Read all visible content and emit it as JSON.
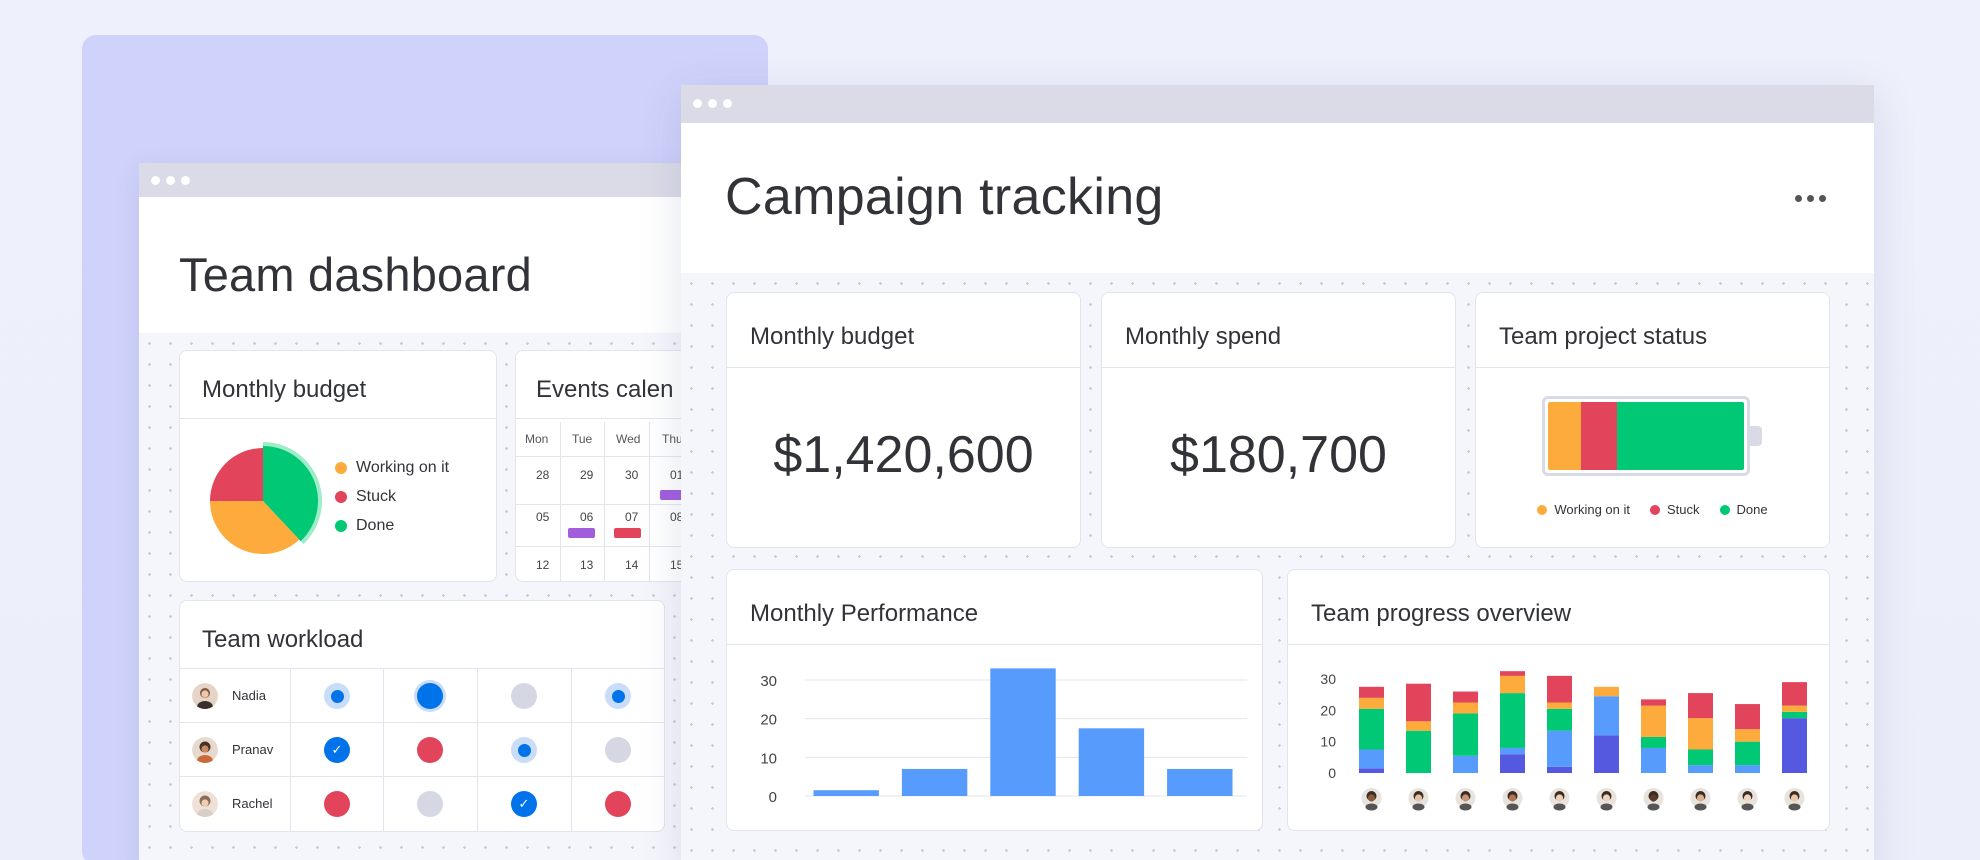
{
  "colors": {
    "working": "#fdab3d",
    "stuck": "#e2445c",
    "done": "#00c875",
    "bar_blue": "#579bfc",
    "indigo": "#5559df",
    "primary_blue": "#0073ea",
    "purple": "#a25ddc"
  },
  "back_window": {
    "title": "Team dashboard",
    "monthly_budget": {
      "title": "Monthly budget",
      "legend": [
        {
          "label": "Working on it",
          "color": "#fdab3d"
        },
        {
          "label": "Stuck",
          "color": "#e2445c"
        },
        {
          "label": "Done",
          "color": "#00c875"
        }
      ],
      "pie": [
        {
          "status": "Working on it",
          "value": 37
        },
        {
          "status": "Stuck",
          "value": 25
        },
        {
          "status": "Done",
          "value": 38
        }
      ]
    },
    "events_calendar": {
      "title": "Events calen",
      "days": [
        "Mon",
        "Tue",
        "Wed",
        "Thu"
      ],
      "weeks": [
        [
          "28",
          "29",
          "30",
          "01"
        ],
        [
          "05",
          "06",
          "07",
          "08"
        ],
        [
          "12",
          "13",
          "14",
          "15"
        ]
      ]
    },
    "team_workload": {
      "title": "Team workload",
      "rows": [
        {
          "name": "Nadia",
          "statuses": [
            "ring",
            "filled",
            "grey",
            "ring"
          ]
        },
        {
          "name": "Pranav",
          "statuses": [
            "check",
            "red",
            "ring",
            "grey"
          ]
        },
        {
          "name": "Rachel",
          "statuses": [
            "red",
            "grey",
            "check",
            "red"
          ]
        }
      ]
    }
  },
  "front_window": {
    "title": "Campaign tracking",
    "more_icon": "more-horizontal-icon",
    "monthly_budget": {
      "title": "Monthly budget",
      "value": "$1,420,600"
    },
    "monthly_spend": {
      "title": "Monthly spend",
      "value": "$180,700"
    },
    "team_project_status": {
      "title": "Team project status",
      "legend": [
        {
          "label": "Working on it",
          "color": "#fdab3d"
        },
        {
          "label": "Stuck",
          "color": "#e2445c"
        },
        {
          "label": "Done",
          "color": "#00c875"
        }
      ],
      "battery": [
        {
          "status": "Working on it",
          "value": 17
        },
        {
          "status": "Stuck",
          "value": 18
        },
        {
          "status": "Done",
          "value": 65
        }
      ]
    },
    "monthly_performance": {
      "title": "Monthly Performance"
    },
    "team_progress": {
      "title": "Team progress overview"
    }
  },
  "chart_data": [
    {
      "type": "bar",
      "title": "Monthly Performance",
      "ylim": [
        0,
        30
      ],
      "yticks": [
        "30",
        "20",
        "10",
        "0"
      ],
      "values": [
        1.5,
        7,
        33,
        17.5,
        7
      ],
      "color": "#579bfc"
    },
    {
      "type": "bar",
      "title": "Team progress overview",
      "stacked": true,
      "ylim": [
        0,
        30
      ],
      "yticks": [
        "30",
        "20",
        "10",
        "0"
      ],
      "categories_count": 10,
      "segments_order": [
        "indigo",
        "blue",
        "green",
        "orange",
        "red"
      ],
      "stacks": [
        {
          "indigo": 1.5,
          "blue": 6,
          "green": 13,
          "orange": 3.5,
          "red": 3.5
        },
        {
          "indigo": 0,
          "blue": 0,
          "green": 13.5,
          "orange": 3,
          "red": 12
        },
        {
          "indigo": 0,
          "blue": 5.5,
          "green": 13.5,
          "orange": 3.5,
          "red": 3.5
        },
        {
          "indigo": 6,
          "blue": 2,
          "green": 17.5,
          "orange": 5.5,
          "red": 1.5
        },
        {
          "indigo": 2,
          "blue": 11.5,
          "green": 7,
          "orange": 2,
          "red": 8.5
        },
        {
          "indigo": 12,
          "blue": 12.5,
          "green": 0,
          "orange": 3,
          "red": 0
        },
        {
          "indigo": 0,
          "blue": 8,
          "green": 3.5,
          "orange": 10,
          "red": 2
        },
        {
          "indigo": 0,
          "blue": 2.5,
          "green": 5,
          "orange": 10,
          "red": 8
        },
        {
          "indigo": 0,
          "blue": 2.5,
          "green": 7.5,
          "orange": 4,
          "red": 8
        },
        {
          "indigo": 17.5,
          "blue": 0,
          "green": 2,
          "orange": 2,
          "red": 7.5
        }
      ]
    }
  ]
}
